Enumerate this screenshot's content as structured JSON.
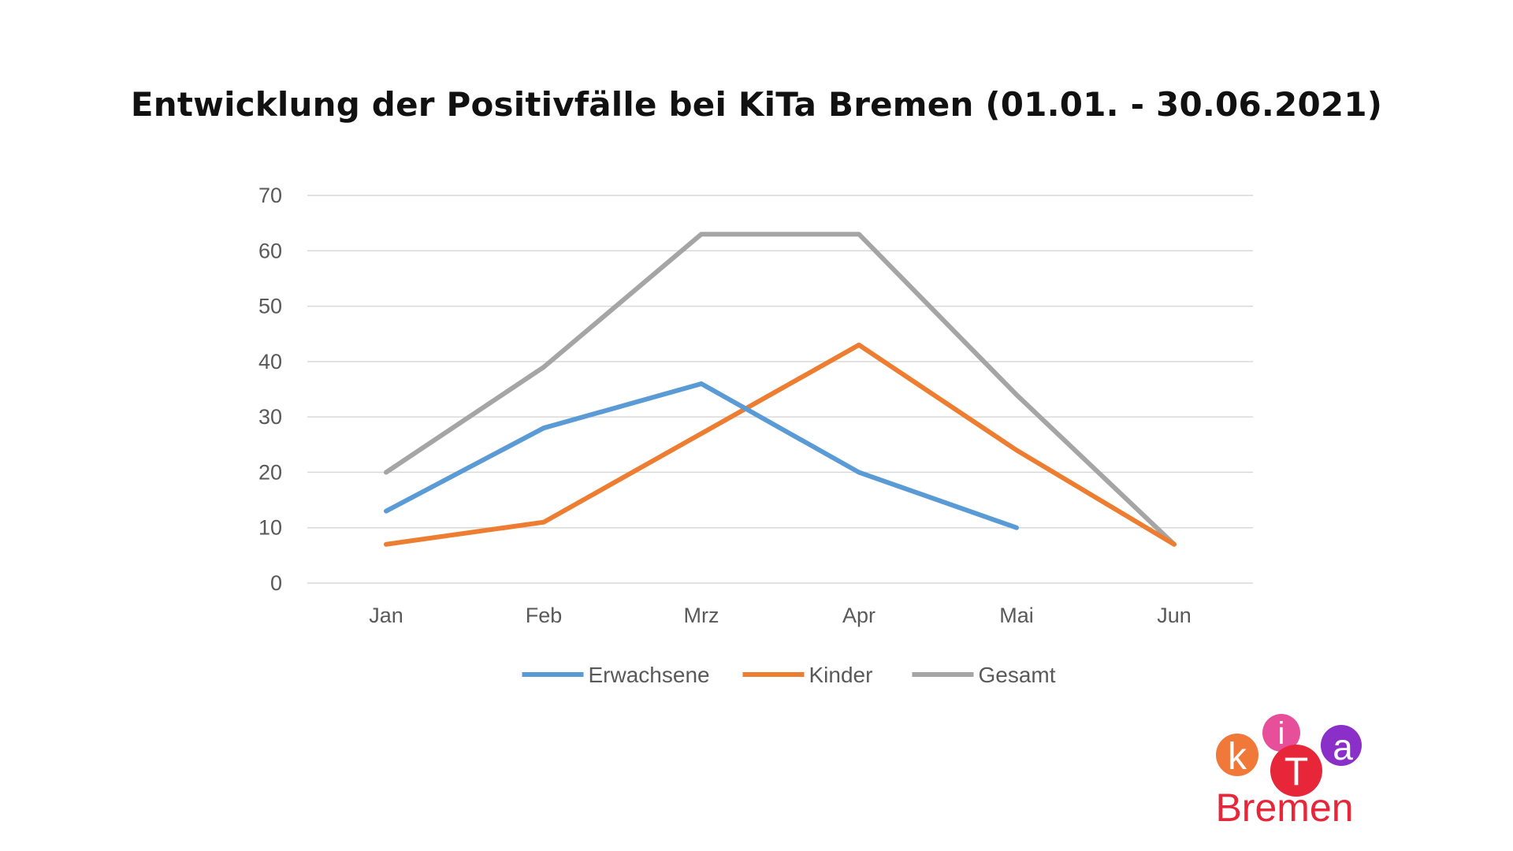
{
  "chart_data": {
    "type": "line",
    "title": "Entwicklung der Positivfälle bei KiTa Bremen (01.01. - 30.06.2021)",
    "categories": [
      "Jan",
      "Feb",
      "Mrz",
      "Apr",
      "Mai",
      "Jun"
    ],
    "series": [
      {
        "name": "Erwachsene",
        "color": "#5b9bd5",
        "values": [
          13,
          28,
          36,
          20,
          10,
          null
        ]
      },
      {
        "name": "Kinder",
        "color": "#ed7d31",
        "values": [
          7,
          11,
          27,
          43,
          24,
          7
        ]
      },
      {
        "name": "Gesamt",
        "color": "#a5a5a5",
        "values": [
          20,
          39,
          63,
          63,
          34,
          7
        ]
      }
    ],
    "ylim": [
      0,
      70
    ],
    "yticks": [
      0,
      10,
      20,
      30,
      40,
      50,
      60,
      70
    ],
    "grid": true,
    "legend_position": "bottom"
  },
  "logo": {
    "letters": [
      "k",
      "i",
      "T",
      "a"
    ],
    "text": "Bremen",
    "colors": {
      "k": "#f07838",
      "i": "#e84f9b",
      "T": "#e8263a",
      "a": "#8a2fc7"
    }
  }
}
